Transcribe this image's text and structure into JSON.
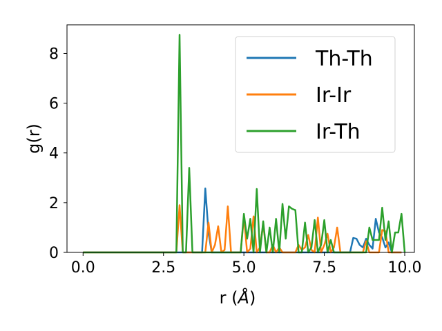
{
  "chart_data": {
    "type": "line",
    "xlabel": "r (",
    "xlabel_unit": "Å",
    "xlabel_close": ")",
    "ylabel": "g(r)",
    "xlim": [
      -0.5,
      10.3
    ],
    "ylim": [
      0,
      9.15
    ],
    "xticks": [
      0.0,
      2.5,
      5.0,
      7.5,
      10.0
    ],
    "xtick_labels": [
      "0.0",
      "2.5",
      "5.0",
      "7.5",
      "10.0"
    ],
    "yticks": [
      0,
      2,
      4,
      6,
      8
    ],
    "ytick_labels": [
      "0",
      "2",
      "4",
      "6",
      "8"
    ],
    "grid": false,
    "legend_position": "top-right",
    "x_step": 0.1,
    "series": [
      {
        "name": "Th-Th",
        "color": "#1f77b4",
        "values": [
          0,
          0,
          0,
          0,
          0,
          0,
          0,
          0,
          0,
          0,
          0,
          0,
          0,
          0,
          0,
          0,
          0,
          0,
          0,
          0,
          0,
          0,
          0,
          0,
          0,
          0,
          0,
          0,
          0,
          0,
          0,
          0,
          0,
          0,
          0,
          0,
          0,
          0,
          2.57,
          0.8,
          0,
          0,
          0,
          0,
          0,
          0,
          0,
          0,
          0,
          0,
          0,
          0,
          0,
          0,
          0,
          0,
          0,
          0,
          0,
          0,
          0,
          0,
          0,
          0,
          0,
          0,
          0,
          0,
          0,
          0,
          0,
          0,
          0,
          0,
          0,
          0,
          0,
          0,
          0,
          0,
          0,
          0,
          0,
          0,
          0.58,
          0.55,
          0.3,
          0.2,
          0.55,
          0.3,
          0.15,
          1.35,
          0.8,
          0.6,
          0.2,
          0.4,
          0,
          0,
          0,
          0
        ]
      },
      {
        "name": "Ir-Ir",
        "color": "#ff7f0e",
        "values": [
          0,
          0,
          0,
          0,
          0,
          0,
          0,
          0,
          0,
          0,
          0,
          0,
          0,
          0,
          0,
          0,
          0,
          0,
          0,
          0,
          0,
          0,
          0,
          0,
          0,
          0,
          0,
          0,
          0,
          0,
          1.9,
          0,
          0,
          0,
          0,
          0,
          0,
          0,
          0,
          1.2,
          0,
          0.3,
          1.05,
          0,
          0.1,
          1.85,
          0,
          0,
          0,
          0,
          1.45,
          0,
          0.15,
          1.45,
          0,
          0.2,
          1.15,
          0,
          0,
          0.3,
          0,
          0.2,
          0,
          0,
          0,
          0,
          0,
          0.3,
          0.1,
          0.2,
          0.7,
          0.1,
          0,
          1.4,
          0,
          0.3,
          0.75,
          0,
          0.2,
          1.0,
          0,
          0,
          0,
          0,
          0,
          0,
          0,
          0,
          0.45,
          0,
          0,
          0,
          0,
          0.9,
          0.85,
          0,
          0,
          0,
          0,
          0
        ]
      },
      {
        "name": "Ir-Th",
        "color": "#2ca02c",
        "values": [
          0,
          0,
          0,
          0,
          0,
          0,
          0,
          0,
          0,
          0,
          0,
          0,
          0,
          0,
          0,
          0,
          0,
          0,
          0,
          0,
          0,
          0,
          0,
          0,
          0,
          0,
          0,
          0,
          0,
          0,
          8.75,
          0,
          0,
          3.4,
          0,
          0,
          0,
          0,
          0,
          0,
          0,
          0,
          0,
          0,
          0,
          0,
          0,
          0,
          0,
          0,
          1.55,
          0.55,
          1.35,
          0,
          2.55,
          0,
          1.25,
          0,
          1.0,
          0,
          1.35,
          0,
          1.95,
          0.55,
          1.85,
          1.75,
          1.7,
          0,
          0,
          1.2,
          0,
          0.2,
          1.3,
          0,
          0.3,
          1.3,
          0,
          0.5,
          0,
          0,
          0,
          0,
          0,
          0,
          0,
          0,
          0,
          0,
          0,
          1.0,
          0.5,
          0.5,
          0.5,
          1.8,
          0.5,
          1.25,
          0,
          0.8,
          0.8,
          1.55,
          0
        ]
      }
    ]
  }
}
